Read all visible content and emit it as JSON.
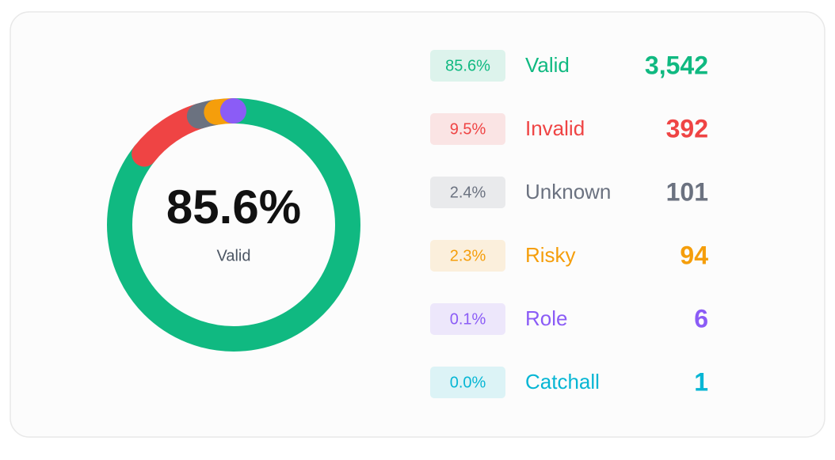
{
  "chart_data": {
    "type": "donut",
    "categories": [
      "Valid",
      "Invalid",
      "Unknown",
      "Risky",
      "Role",
      "Catchall"
    ],
    "values": [
      3542,
      392,
      101,
      94,
      6,
      1
    ],
    "value_labels": [
      "3,542",
      "392",
      "101",
      "94",
      "6",
      "1"
    ],
    "percent_labels": [
      "85.6%",
      "9.5%",
      "2.4%",
      "2.3%",
      "0.1%",
      "0.0%"
    ],
    "colors": [
      "#10b981",
      "#ef4444",
      "#6b7280",
      "#f59e0b",
      "#8b5cf6",
      "#06b6d4"
    ]
  }
}
